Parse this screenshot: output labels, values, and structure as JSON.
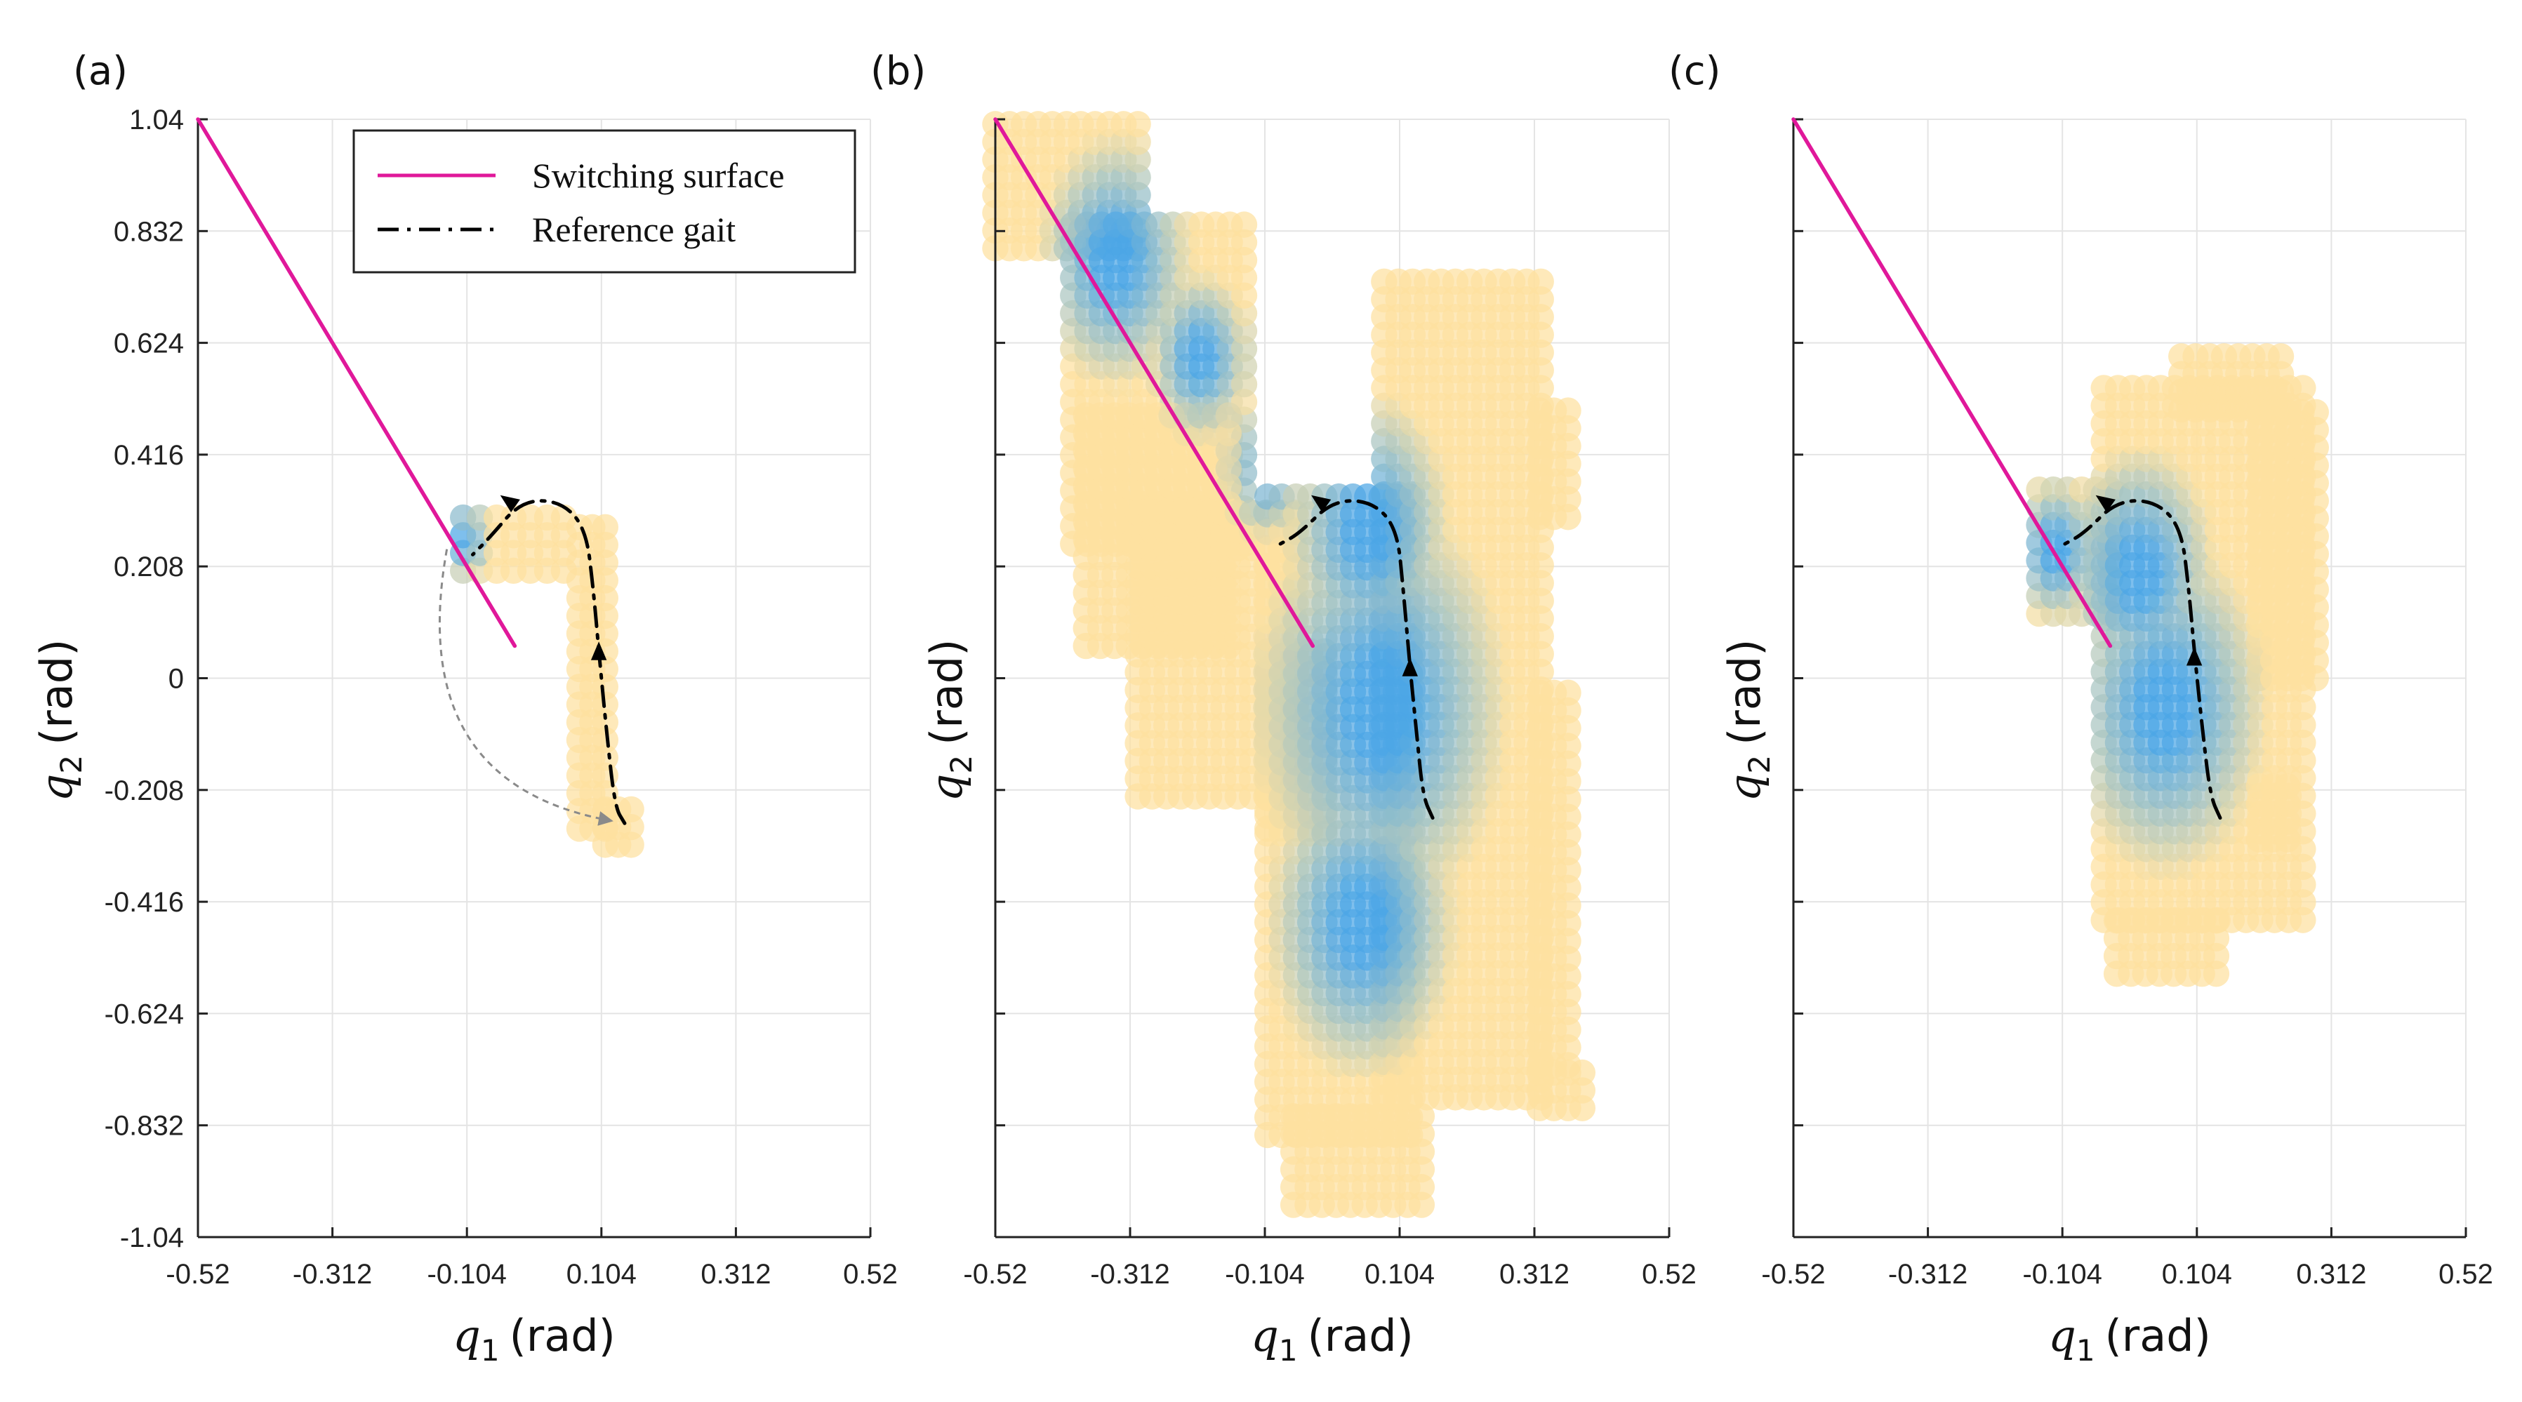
{
  "colors": {
    "switching_surface": "#e0189a",
    "reference_gait": "#000000",
    "blue_point": "#4ca6e6",
    "yellow_point": "#fde1a0",
    "grid": "#e4e4e4",
    "arrow_gray": "#8a8a8a"
  },
  "legend": {
    "switching_label": "Switching surface",
    "gait_label": "Reference gait"
  },
  "chart_data": [
    {
      "type": "scatter",
      "panel_label": "(a)",
      "xlabel_symbol": "q",
      "xlabel_sub": "1",
      "xlabel_unit": "(rad)",
      "ylabel_symbol": "q",
      "ylabel_sub": "2",
      "ylabel_unit": "(rad)",
      "xlim": [
        -0.52,
        0.52
      ],
      "ylim": [
        -1.04,
        1.04
      ],
      "xticks": [
        "-0.52",
        "-0.312",
        "-0.104",
        "0.104",
        "0.312",
        "0.52"
      ],
      "yticks": [
        "-1.04",
        "-0.832",
        "-0.624",
        "-0.416",
        "-0.208",
        "0",
        "0.208",
        "0.416",
        "0.624",
        "0.832",
        "1.04"
      ],
      "show_yticklabels": true,
      "grid": true,
      "legend_position": "top-right",
      "switching_surface": [
        [
          -0.52,
          1.04
        ],
        [
          -0.03,
          0.06
        ]
      ],
      "reference_gait": [
        [
          0.14,
          -0.27
        ],
        [
          0.125,
          -0.24
        ],
        [
          0.112,
          -0.1
        ],
        [
          0.1,
          0.05
        ],
        [
          0.092,
          0.16
        ],
        [
          0.08,
          0.28
        ],
        [
          0.04,
          0.33
        ],
        [
          -0.02,
          0.33
        ],
        [
          -0.07,
          0.26
        ],
        [
          -0.095,
          0.23
        ]
      ],
      "gait_arrows": [
        [
          0.1,
          0.05
        ],
        [
          -0.04,
          0.33
        ]
      ],
      "impact_map_arrow": {
        "from": [
          -0.135,
          0.24
        ],
        "to": [
          0.118,
          -0.265
        ]
      },
      "regions": [
        {
          "x": [
            -0.11,
            0.07
          ],
          "y": [
            0.2,
            0.32
          ],
          "dx": 0.026,
          "dy": 0.033
        },
        {
          "x": [
            0.07,
            0.12
          ],
          "y": [
            -0.28,
            0.3
          ],
          "dx": 0.02,
          "dy": 0.033
        },
        {
          "x": [
            0.11,
            0.155
          ],
          "y": [
            -0.31,
            -0.24
          ],
          "dx": 0.02,
          "dy": 0.033
        }
      ],
      "blue_cores": [
        {
          "x": -0.104,
          "y": 0.26,
          "r": 0.04
        }
      ]
    },
    {
      "type": "scatter",
      "panel_label": "(b)",
      "xlabel_symbol": "q",
      "xlabel_sub": "1",
      "xlabel_unit": "(rad)",
      "ylabel_symbol": "q",
      "ylabel_sub": "2",
      "ylabel_unit": "(rad)",
      "xlim": [
        -0.52,
        0.52
      ],
      "ylim": [
        -1.04,
        1.04
      ],
      "xticks": [
        "-0.52",
        "-0.312",
        "-0.104",
        "0.104",
        "0.312",
        "0.52"
      ],
      "yticks": [
        "-1.04",
        "-0.832",
        "-0.624",
        "-0.416",
        "-0.208",
        "0",
        "0.208",
        "0.416",
        "0.624",
        "0.832",
        "1.04"
      ],
      "show_yticklabels": false,
      "grid": true,
      "switching_surface": [
        [
          -0.52,
          1.04
        ],
        [
          -0.03,
          0.06
        ]
      ],
      "reference_gait": [
        [
          0.155,
          -0.26
        ],
        [
          0.14,
          -0.22
        ],
        [
          0.13,
          -0.1
        ],
        [
          0.12,
          0.02
        ],
        [
          0.11,
          0.16
        ],
        [
          0.1,
          0.28
        ],
        [
          0.06,
          0.33
        ],
        [
          0.0,
          0.33
        ],
        [
          -0.05,
          0.27
        ],
        [
          -0.08,
          0.25
        ]
      ],
      "gait_arrows": [
        [
          0.12,
          0.02
        ],
        [
          -0.02,
          0.33
        ]
      ],
      "regions": [
        {
          "x": [
            -0.52,
            -0.3
          ],
          "y": [
            0.8,
            1.04
          ],
          "dx": 0.022,
          "dy": 0.033
        },
        {
          "x": [
            -0.4,
            -0.12
          ],
          "y": [
            0.25,
            0.86
          ],
          "dx": 0.022,
          "dy": 0.033
        },
        {
          "x": [
            -0.38,
            -0.16
          ],
          "y": [
            0.06,
            0.5
          ],
          "dx": 0.022,
          "dy": 0.033
        },
        {
          "x": [
            -0.3,
            -0.04
          ],
          "y": [
            -0.22,
            0.34
          ],
          "dx": 0.022,
          "dy": 0.033
        },
        {
          "x": [
            -0.1,
            0.0
          ],
          "y": [
            -0.28,
            0.05
          ],
          "dx": 0.022,
          "dy": 0.033
        },
        {
          "x": [
            -0.1,
            0.14
          ],
          "y": [
            -0.85,
            0.35
          ],
          "dx": 0.022,
          "dy": 0.033
        },
        {
          "x": [
            -0.06,
            0.14
          ],
          "y": [
            -0.98,
            -0.8
          ],
          "dx": 0.022,
          "dy": 0.033
        },
        {
          "x": [
            0.08,
            0.33
          ],
          "y": [
            -0.78,
            0.75
          ],
          "dx": 0.022,
          "dy": 0.033
        },
        {
          "x": [
            0.32,
            0.38
          ],
          "y": [
            -0.72,
            -0.0
          ],
          "dx": 0.022,
          "dy": 0.033
        },
        {
          "x": [
            0.32,
            0.4
          ],
          "y": [
            -0.8,
            -0.72
          ],
          "dx": 0.022,
          "dy": 0.033
        },
        {
          "x": [
            0.32,
            0.37
          ],
          "y": [
            0.3,
            0.52
          ],
          "dx": 0.022,
          "dy": 0.033
        }
      ],
      "blue_cores": [
        {
          "x": -0.33,
          "y": 0.78,
          "r": 0.12
        },
        {
          "x": -0.2,
          "y": 0.6,
          "r": 0.08
        },
        {
          "x": -0.1,
          "y": 0.4,
          "r": 0.07
        },
        {
          "x": 0.06,
          "y": 0.28,
          "r": 0.13
        },
        {
          "x": 0.08,
          "y": -0.05,
          "r": 0.2
        },
        {
          "x": 0.05,
          "y": -0.45,
          "r": 0.15
        }
      ]
    },
    {
      "type": "scatter",
      "panel_label": "(c)",
      "xlabel_symbol": "q",
      "xlabel_sub": "1",
      "xlabel_unit": "(rad)",
      "ylabel_symbol": "q",
      "ylabel_sub": "2",
      "ylabel_unit": "(rad)",
      "xlim": [
        -0.52,
        0.52
      ],
      "ylim": [
        -1.04,
        1.04
      ],
      "xticks": [
        "-0.52",
        "-0.312",
        "-0.104",
        "0.104",
        "0.312",
        "0.52"
      ],
      "yticks": [
        "-1.04",
        "-0.832",
        "-0.624",
        "-0.416",
        "-0.208",
        "0",
        "0.208",
        "0.416",
        "0.624",
        "0.832",
        "1.04"
      ],
      "show_yticklabels": false,
      "grid": true,
      "switching_surface": [
        [
          -0.52,
          1.04
        ],
        [
          -0.03,
          0.06
        ]
      ],
      "reference_gait": [
        [
          0.14,
          -0.26
        ],
        [
          0.125,
          -0.22
        ],
        [
          0.113,
          -0.1
        ],
        [
          0.1,
          0.05
        ],
        [
          0.092,
          0.16
        ],
        [
          0.08,
          0.28
        ],
        [
          0.04,
          0.33
        ],
        [
          -0.02,
          0.33
        ],
        [
          -0.07,
          0.27
        ],
        [
          -0.1,
          0.25
        ]
      ],
      "gait_arrows": [
        [
          0.1,
          0.04
        ],
        [
          -0.04,
          0.33
        ]
      ],
      "regions": [
        {
          "x": [
            -0.14,
            -0.02
          ],
          "y": [
            0.12,
            0.38
          ],
          "dx": 0.022,
          "dy": 0.033
        },
        {
          "x": [
            -0.04,
            0.28
          ],
          "y": [
            -0.45,
            0.55
          ],
          "dx": 0.022,
          "dy": 0.033
        },
        {
          "x": [
            0.08,
            0.24
          ],
          "y": [
            0.5,
            0.62
          ],
          "dx": 0.022,
          "dy": 0.033
        },
        {
          "x": [
            -0.02,
            0.14
          ],
          "y": [
            -0.55,
            -0.45
          ],
          "dx": 0.022,
          "dy": 0.033
        },
        {
          "x": [
            0.2,
            0.3
          ],
          "y": [
            0.0,
            0.5
          ],
          "dx": 0.022,
          "dy": 0.033
        },
        {
          "x": [
            0.2,
            0.25
          ],
          "y": [
            -0.3,
            -0.2
          ],
          "dx": 0.022,
          "dy": 0.033
        }
      ],
      "blue_cores": [
        {
          "x": -0.11,
          "y": 0.24,
          "r": 0.07
        },
        {
          "x": 0.02,
          "y": 0.2,
          "r": 0.12
        },
        {
          "x": 0.06,
          "y": -0.05,
          "r": 0.16
        }
      ]
    }
  ]
}
